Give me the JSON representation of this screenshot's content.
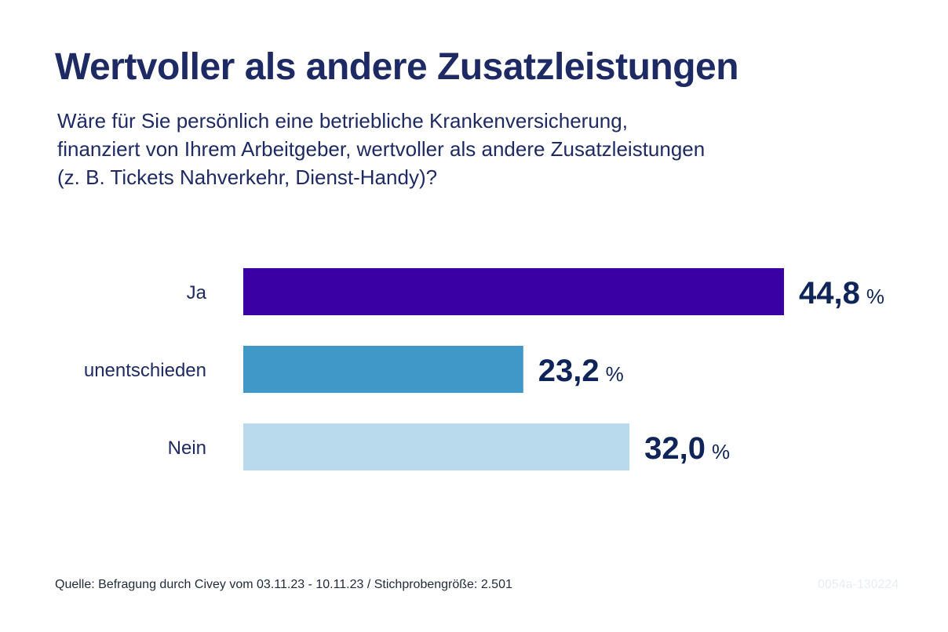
{
  "header": {
    "title": "Wertvoller als andere Zusatzleistungen",
    "subtitle_lines": [
      "Wäre für Sie persönlich eine betriebliche Krankenversicherung,",
      "finanziert von Ihrem Arbeitgeber, wertvoller als andere Zusatzleistungen",
      "(z. B. Tickets Nahverkehr, Dienst-Handy)?"
    ]
  },
  "chart_data": {
    "type": "bar",
    "orientation": "horizontal",
    "categories": [
      "Ja",
      "unentschieden",
      "Nein"
    ],
    "values": [
      44.8,
      23.2,
      32.0
    ],
    "value_labels": [
      "44,8",
      "23,2",
      "32,0"
    ],
    "unit": "%",
    "colors": [
      "#3a00a4",
      "#4098c8",
      "#b9daec"
    ],
    "xlim": [
      0,
      44.8
    ],
    "grid": false,
    "legend": "none"
  },
  "footer": {
    "source": "Quelle: Befragung durch Civey vom 03.11.23 - 10.11.23 / Stichprobengröße: 2.501",
    "code": "0054a-130224"
  }
}
